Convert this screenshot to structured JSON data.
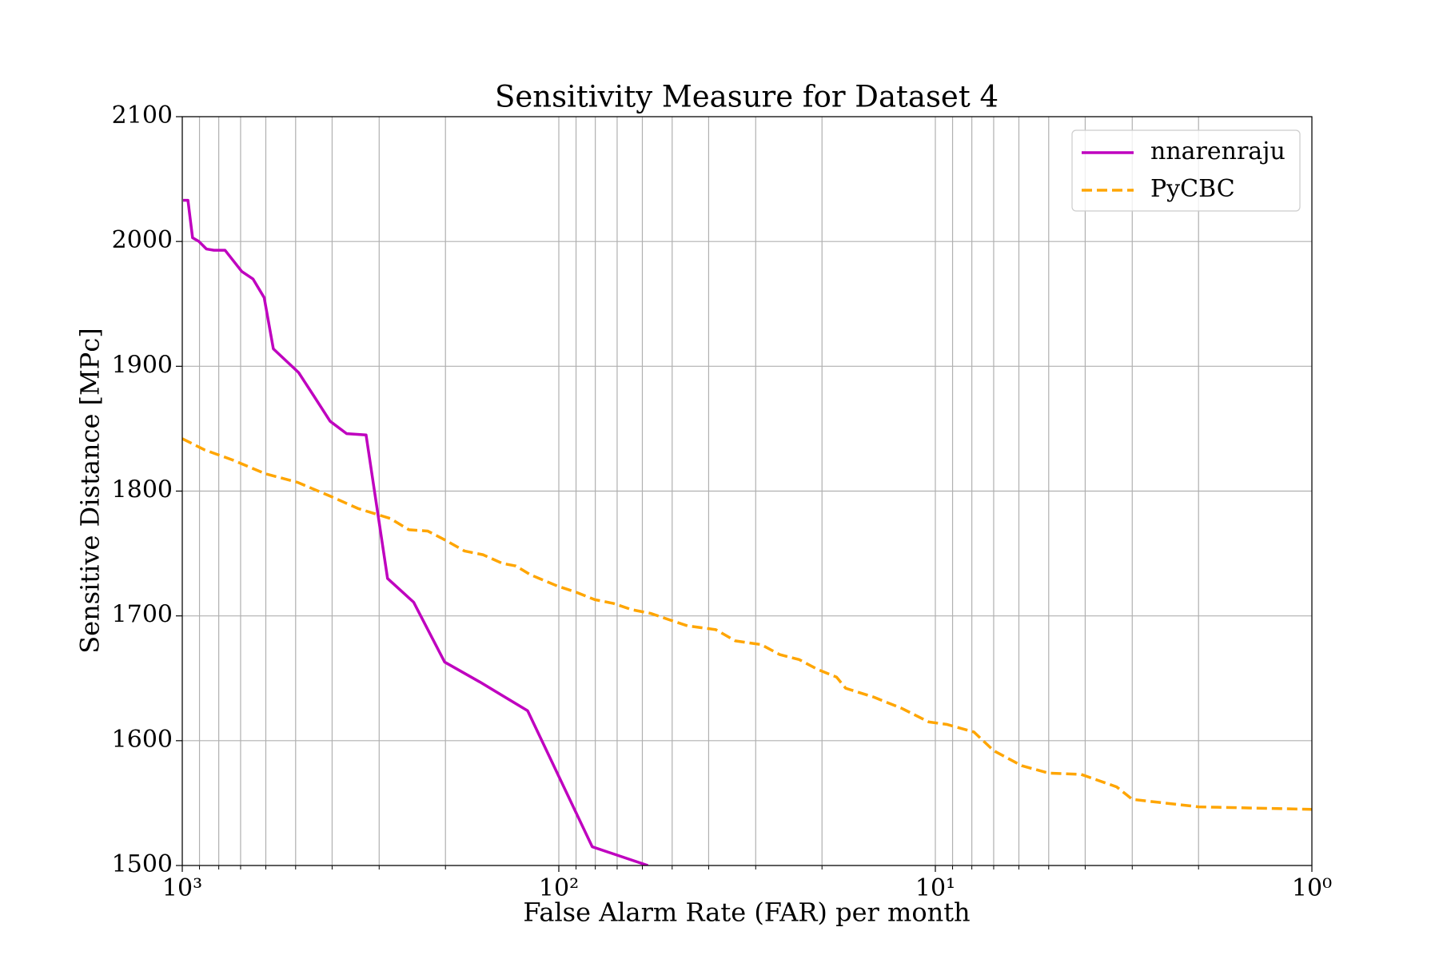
{
  "chart_data": {
    "type": "line",
    "title": "Sensitivity Measure for Dataset 4",
    "x_label": "False Alarm Rate (FAR) per month",
    "y_label": "Sensitive Distance [MPc]",
    "xscale": "log",
    "xlim": [
      1000,
      1
    ],
    "xticks": [
      {
        "value": 1000,
        "label": "10³"
      },
      {
        "value": 100,
        "label": "10²"
      },
      {
        "value": 10,
        "label": "10¹"
      },
      {
        "value": 1,
        "label": "10⁰"
      }
    ],
    "xminorticks": [
      2,
      3,
      4,
      5,
      6,
      7,
      8,
      9,
      20,
      30,
      40,
      50,
      60,
      70,
      80,
      90,
      200,
      300,
      400,
      500,
      600,
      700,
      800,
      900
    ],
    "ylim": [
      1500,
      2100
    ],
    "yticks": [
      1500,
      1600,
      1700,
      1800,
      1900,
      2000,
      2100
    ],
    "grid": true,
    "legend": "upper right",
    "series": [
      {
        "name": "nnarenraju",
        "color": "#bf00bf",
        "dash": "solid",
        "x": [
          995,
          966,
          939,
          903,
          863,
          824,
          770,
          695,
          649,
          606,
          573,
          491,
          449,
          405,
          366,
          325,
          285,
          243,
          201,
          162,
          121,
          81.5,
          58
        ],
        "values": [
          2033,
          2033,
          2003,
          2000,
          1994,
          1993,
          1993,
          1976,
          1970,
          1955,
          1914,
          1895,
          1877,
          1856,
          1846,
          1845,
          1730,
          1711,
          1663,
          1647,
          1624,
          1515,
          1500
        ]
      },
      {
        "name": "PyCBC",
        "color": "#ffa500",
        "dash": "dashed",
        "x": [
          1000,
          872,
          736,
          603,
          494,
          405,
          341,
          280,
          250,
          223,
          201,
          178,
          159,
          141,
          130,
          119,
          101,
          90,
          80.2,
          71.6,
          64,
          57,
          51,
          45.5,
          38.3,
          34,
          29,
          25.9,
          23,
          20.5,
          18.3,
          17.3,
          14.6,
          12.3,
          10.4,
          9.3,
          7.9,
          7.0,
          5.9,
          5.0,
          4.1,
          3.3,
          3.0,
          2.0,
          1.0
        ],
        "values": [
          1842,
          1833,
          1825,
          1814,
          1807,
          1796,
          1786,
          1778,
          1769,
          1768,
          1761,
          1752,
          1749,
          1742,
          1740,
          1733,
          1724,
          1719,
          1713,
          1710,
          1705,
          1702,
          1697,
          1692,
          1689,
          1680,
          1677,
          1669,
          1665,
          1657,
          1651,
          1642,
          1635,
          1626,
          1615,
          1613,
          1607,
          1592,
          1580,
          1574,
          1573,
          1563,
          1553,
          1547,
          1545
        ]
      }
    ]
  }
}
